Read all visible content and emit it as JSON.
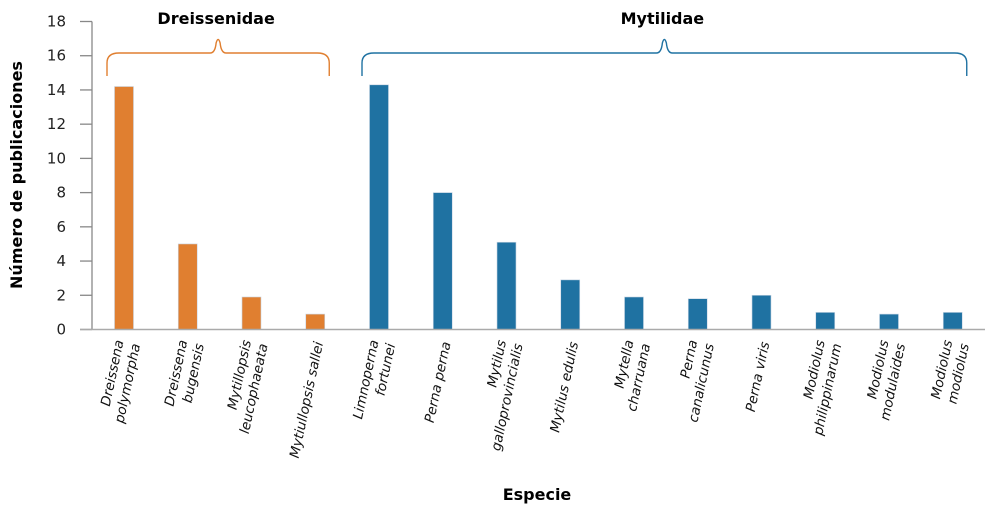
{
  "chart_data": {
    "type": "bar",
    "xlabel": "Especie",
    "ylabel": "Número de publicaciones",
    "ylim": [
      0,
      18
    ],
    "yticks": [
      0,
      2,
      4,
      6,
      8,
      10,
      12,
      14,
      16,
      18
    ],
    "grid": false,
    "categories": [
      "Dreissena\npolymorpha",
      "Dreissena\nbugensis",
      "Mytillopsis\nleucophaeata",
      "Mytiullopsis sallei",
      "Limnoperna\nfortunei",
      "Perna perna",
      "Mytilus\ngalloprovincialis",
      "Mytilus edulis",
      "Mytella\ncharruana",
      "Perna\ncanalicunus",
      "Perna viris",
      "Modiolus\nphilippinarum",
      "Modiolus\nmodulaides",
      "Modiolus\nmodiolus"
    ],
    "values": [
      14.2,
      5,
      1.9,
      0.9,
      14.3,
      8,
      5.1,
      2.9,
      1.9,
      1.8,
      2,
      1,
      0.9,
      1
    ],
    "groups": [
      {
        "name": "Dreissenidae",
        "start": 0,
        "end": 3,
        "color": "#E07F30"
      },
      {
        "name": "Mytilidae",
        "start": 4,
        "end": 13,
        "color": "#1F72A2"
      }
    ]
  }
}
